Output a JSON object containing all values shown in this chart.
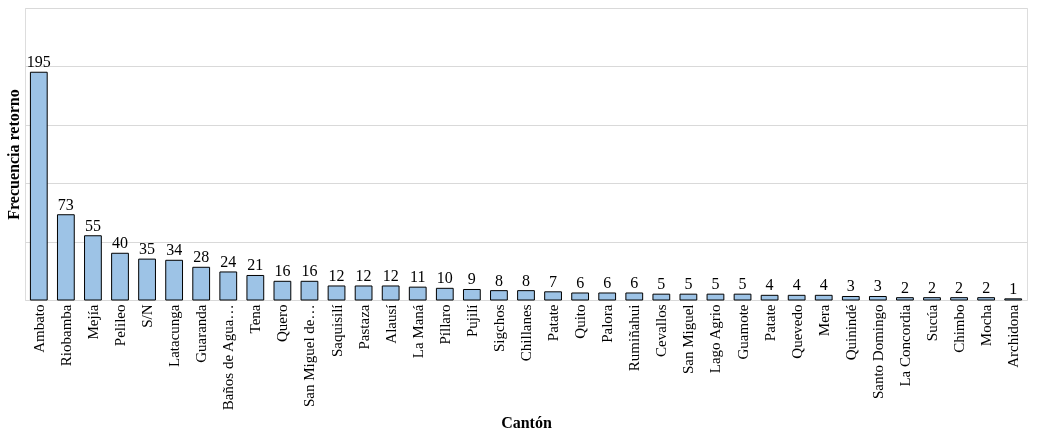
{
  "chart_data": {
    "type": "bar",
    "xlabel": "Cantón",
    "ylabel": "Frecuencia retorno",
    "categories": [
      "Ambato",
      "Riobamba",
      "Mejía",
      "Pelileo",
      "S/N",
      "Latacunga",
      "Guaranda",
      "Baños de Agua…",
      "Tena",
      "Quero",
      "San Miguel de…",
      "Saquisilí",
      "Pastaza",
      "Alausí",
      "La Maná",
      "Píllaro",
      "Pujilí",
      "Sigchos",
      "Chillanes",
      "Patate",
      "Quito",
      "Palora",
      "Rumiñahui",
      "Cevallos",
      "San Miguel",
      "Lago Agrio",
      "Guamote",
      "Patate",
      "Quevedo",
      "Mera",
      "Quinindé",
      "Santo Domingo",
      "La Concordia",
      "Sucúa",
      "Chimbo",
      "Mocha",
      "Archidona"
    ],
    "values": [
      195,
      73,
      55,
      40,
      35,
      34,
      28,
      24,
      21,
      16,
      16,
      12,
      12,
      12,
      11,
      10,
      9,
      8,
      8,
      7,
      6,
      6,
      6,
      5,
      5,
      5,
      5,
      4,
      4,
      4,
      3,
      3,
      2,
      2,
      2,
      2,
      1
    ],
    "color": "#9dc3e6",
    "ylim": [
      0,
      250
    ],
    "yticks": [
      {
        "value": 0,
        "label": null
      },
      {
        "value": 50,
        "label": null
      },
      {
        "value": 100,
        "label": null
      },
      {
        "value": 150,
        "label": null
      },
      {
        "value": 200,
        "label": null
      },
      {
        "value": 250,
        "label": null
      }
    ],
    "tick_labels": "x",
    "grid": "y",
    "data_labels": true
  }
}
